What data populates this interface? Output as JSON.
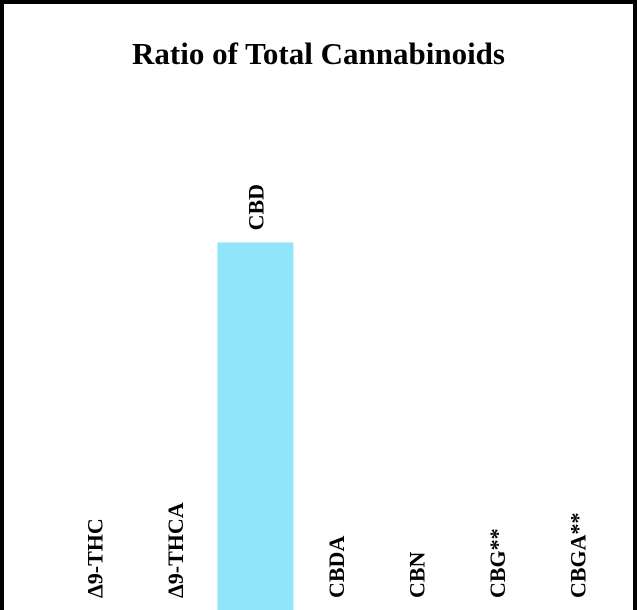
{
  "chart_data": {
    "type": "bar",
    "title": "Ratio of Total Cannabinoids",
    "categories": [
      "Δ9-THC",
      "Δ9-THCA",
      "CBD",
      "CBDA",
      "CBN",
      "CBG**",
      "CBGA**"
    ],
    "values": [
      0,
      0,
      100,
      0,
      0,
      0,
      0
    ],
    "ylim": [
      0,
      145
    ],
    "xlabel": "",
    "ylabel": "",
    "grid": false,
    "legend": "none",
    "bar_color": "#90E6F8"
  }
}
